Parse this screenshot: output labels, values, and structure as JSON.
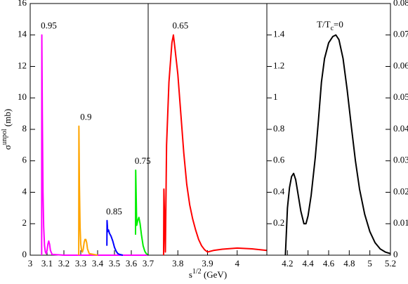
{
  "chart_data": [
    {
      "type": "line",
      "xlim": [
        3,
        3.7
      ],
      "xticks": [
        3,
        3.1,
        3.2,
        3.3,
        3.4,
        3.5,
        3.6,
        3.7
      ],
      "ylim": [
        0,
        16
      ],
      "yticks": [
        0,
        2,
        4,
        6,
        8,
        10,
        12,
        14,
        16
      ],
      "ylabel": {
        "base": "σ",
        "sup": "unpol",
        "unit": " (mb)"
      },
      "series": [
        {
          "name": "0.95",
          "color": "#ff00ff",
          "x": [
            3.068,
            3.069,
            3.072,
            3.076,
            3.08,
            3.085,
            3.09,
            3.095,
            3.1,
            3.105,
            3.11,
            3.115,
            3.12,
            3.13,
            3.2,
            3.7
          ],
          "values": [
            0,
            14,
            9,
            4,
            1.8,
            0.6,
            0.2,
            0.1,
            0.3,
            0.7,
            0.9,
            0.7,
            0.3,
            0.05,
            0,
            0
          ]
        },
        {
          "name": "0.9",
          "color": "#ffa500",
          "x": [
            3.288,
            3.289,
            3.292,
            3.296,
            3.3,
            3.305,
            3.31,
            3.315,
            3.32,
            3.325,
            3.33,
            3.335,
            3.34,
            3.35,
            3.4
          ],
          "values": [
            0,
            8.2,
            4.5,
            1.8,
            0.7,
            0.3,
            0.2,
            0.4,
            0.8,
            1,
            1,
            0.8,
            0.4,
            0.1,
            0
          ]
        },
        {
          "name": "0.85",
          "color": "#0000ff",
          "x": [
            3.455,
            3.456,
            3.46,
            3.465,
            3.47,
            3.48,
            3.49,
            3.5,
            3.51,
            3.52,
            3.53,
            3.55
          ],
          "values": [
            0.6,
            2.2,
            1.5,
            1.6,
            1.4,
            1.2,
            0.9,
            0.5,
            0.25,
            0.1,
            0.05,
            0
          ]
        },
        {
          "name": "0.75",
          "color": "#00ee00",
          "x": [
            3.625,
            3.626,
            3.632,
            3.638,
            3.645,
            3.652,
            3.66,
            3.67,
            3.68,
            3.69,
            3.7
          ],
          "values": [
            1.3,
            5.4,
            1.9,
            2.2,
            2.4,
            2,
            1.3,
            0.6,
            0.25,
            0.08,
            0.02
          ]
        }
      ]
    },
    {
      "type": "line",
      "xlim": [
        3.7,
        4.1
      ],
      "xticks": [
        3.8,
        3.9,
        4
      ],
      "ylim": [
        0,
        16
      ],
      "xlabel": {
        "base": "s",
        "sup": "1/2",
        "unit": " (GeV)"
      },
      "series": [
        {
          "name": "0.65",
          "color": "#ff0000",
          "x": [
            3.752,
            3.753,
            3.758,
            3.762,
            3.77,
            3.78,
            3.785,
            3.79,
            3.8,
            3.81,
            3.82,
            3.83,
            3.84,
            3.85,
            3.86,
            3.87,
            3.88,
            3.89,
            3.9,
            3.92,
            3.95,
            4,
            4.05,
            4.1
          ],
          "values": [
            0,
            4.2,
            0.2,
            7,
            11,
            13.5,
            14,
            13.2,
            11.5,
            9,
            6.5,
            4.5,
            3.2,
            2.3,
            1.6,
            1,
            0.6,
            0.35,
            0.2,
            0.3,
            0.38,
            0.45,
            0.4,
            0.3
          ]
        }
      ]
    },
    {
      "type": "line",
      "xlim": [
        4,
        5.2
      ],
      "xticks": [
        4.2,
        4.4,
        4.6,
        4.8,
        5,
        5.2
      ],
      "ylim": [
        0,
        1.6
      ],
      "yticks": [
        0.2,
        0.4,
        0.6,
        0.8,
        1,
        1.2,
        1.4
      ],
      "y2lim": [
        0,
        0.08
      ],
      "y2ticks": [
        0,
        0.01,
        0.02,
        0.03,
        0.04,
        0.05,
        0.06,
        0.07,
        0.08
      ],
      "title": {
        "base": "T/T",
        "sub": "c",
        "rest": "=0"
      },
      "series": [
        {
          "name": "T/Tc=0",
          "color": "#000000",
          "x": [
            4.18,
            4.19,
            4.2,
            4.22,
            4.24,
            4.26,
            4.28,
            4.3,
            4.33,
            4.36,
            4.38,
            4.4,
            4.43,
            4.47,
            4.5,
            4.53,
            4.56,
            4.6,
            4.64,
            4.67,
            4.7,
            4.74,
            4.78,
            4.82,
            4.86,
            4.9,
            4.95,
            5,
            5.05,
            5.1,
            5.15,
            5.2
          ],
          "values": [
            0,
            0.15,
            0.3,
            0.43,
            0.5,
            0.52,
            0.48,
            0.4,
            0.28,
            0.2,
            0.2,
            0.25,
            0.38,
            0.62,
            0.85,
            1.1,
            1.25,
            1.35,
            1.39,
            1.4,
            1.37,
            1.25,
            1.05,
            0.82,
            0.6,
            0.42,
            0.26,
            0.15,
            0.08,
            0.04,
            0.02,
            0.01
          ]
        }
      ]
    }
  ]
}
